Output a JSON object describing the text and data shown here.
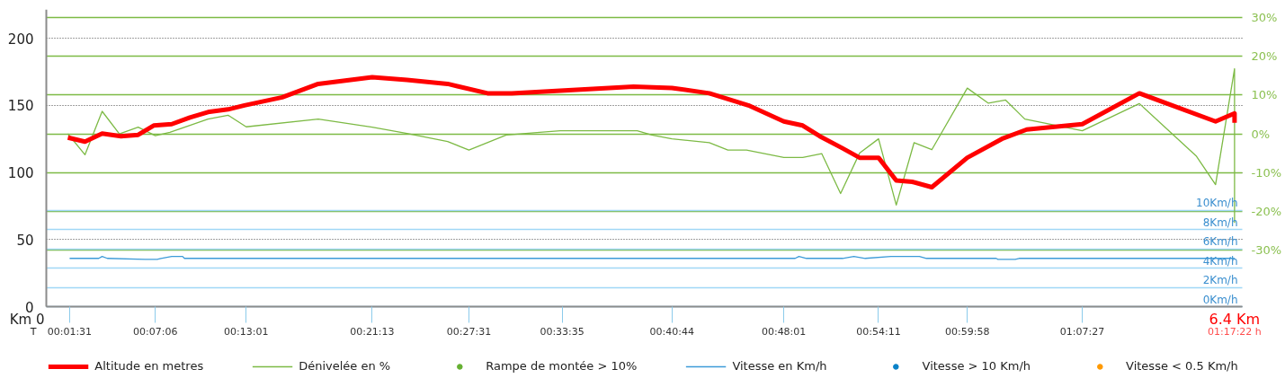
{
  "chart_data": {
    "type": "line",
    "xlim": [
      0,
      1.2978
    ],
    "xticks": [
      {
        "value": 0.02528,
        "label": "00:01:31"
      },
      {
        "value": 0.11833,
        "label": "00:07:06"
      },
      {
        "value": 0.21694,
        "label": "00:13:01"
      },
      {
        "value": 0.35361,
        "label": "00:21:13"
      },
      {
        "value": 0.45861,
        "label": "00:27:31"
      },
      {
        "value": 0.55972,
        "label": "00:33:35"
      },
      {
        "value": 0.67889,
        "label": "00:40:44"
      },
      {
        "value": 0.80028,
        "label": "00:48:01"
      },
      {
        "value": 0.90306,
        "label": "00:54:11"
      },
      {
        "value": 0.99944,
        "label": "00:59:58"
      },
      {
        "value": 1.12417,
        "label": "01:07:27"
      }
    ],
    "ylim": [
      0,
      221.5
    ],
    "yticks": [
      0,
      50,
      100,
      150,
      200
    ],
    "y2lim": [
      -44.6,
      32.1
    ],
    "y2ticks": [
      {
        "value": 30,
        "label": "30%"
      },
      {
        "value": 20,
        "label": "20%"
      },
      {
        "value": 10,
        "label": "10%"
      },
      {
        "value": 0,
        "label": "0%"
      },
      {
        "value": -10,
        "label": "-10%"
      },
      {
        "value": -20,
        "label": "-20%"
      },
      {
        "value": -30,
        "label": "-30%"
      }
    ],
    "y3lim": [
      0,
      30.8
    ],
    "y3ticks": [
      {
        "value": 0,
        "label": "0Km/h"
      },
      {
        "value": 2,
        "label": "2Km/h"
      },
      {
        "value": 4,
        "label": "4Km/h"
      },
      {
        "value": 6,
        "label": "6Km/h"
      },
      {
        "value": 8,
        "label": "8Km/h"
      },
      {
        "value": 10,
        "label": "10Km/h"
      }
    ],
    "grid": "y",
    "legend": "bottom",
    "annotations": [
      "Km 0",
      "T",
      "6.4 Km",
      "01:17:22 h"
    ],
    "series": [
      {
        "name": "Altitude en metres",
        "color": "#ff0000",
        "x": [
          0.0234,
          0.042,
          0.0606,
          0.0811,
          0.0997,
          0.1165,
          0.1361,
          0.1558,
          0.1755,
          0.1972,
          0.215,
          0.256,
          0.2951,
          0.3536,
          0.3914,
          0.4355,
          0.4788,
          0.5051,
          0.5577,
          0.6372,
          0.6789,
          0.7194,
          0.7618,
          0.8003,
          0.8208,
          0.8393,
          0.864,
          0.8825,
          0.9031,
          0.9223,
          0.9397,
          0.9609,
          0.9994,
          1.0369,
          1.0639,
          1.1242,
          1.1861,
          1.2688,
          1.2894,
          1.2894
        ],
        "values": [
          126,
          123,
          129,
          127,
          128,
          135,
          136,
          141,
          145,
          147,
          150,
          156,
          166,
          171,
          169,
          166,
          159,
          159,
          161,
          164,
          163,
          159,
          150,
          138,
          135,
          127,
          118,
          111,
          111,
          94,
          93,
          89,
          111,
          125,
          132,
          136,
          159,
          138,
          144,
          137
        ]
      },
      {
        "name": "Dénivelée en %",
        "color": "#7dba45",
        "axis": "y2",
        "x": [
          0.0234,
          0.042,
          0.0606,
          0.0793,
          0.0997,
          0.1183,
          0.1341,
          0.1755,
          0.1972,
          0.2169,
          0.2951,
          0.3536,
          0.3914,
          0.4355,
          0.4586,
          0.4991,
          0.5354,
          0.5577,
          0.6412,
          0.6571,
          0.6789,
          0.7194,
          0.7396,
          0.7598,
          0.8003,
          0.8208,
          0.8414,
          0.8619,
          0.8825,
          0.9031,
          0.9223,
          0.9416,
          0.9609,
          0.9994,
          1.0223,
          1.041,
          1.0618,
          1.0847,
          1.1242,
          1.1861,
          1.2481,
          1.2688,
          1.2894,
          1.2894
        ],
        "values": [
          0,
          -5.4,
          5.8,
          0,
          1.7,
          -0.5,
          0.4,
          3.8,
          4.8,
          1.8,
          3.8,
          1.7,
          0.1,
          -2.0,
          -4.2,
          -0.3,
          0.4,
          0.8,
          0.8,
          -0.3,
          -1.3,
          -2.3,
          -4.2,
          -4.2,
          -6.1,
          -6.1,
          -5.1,
          -15.4,
          -5.0,
          -1.3,
          -18.4,
          -2.3,
          -4.1,
          11.8,
          7.9,
          8.7,
          3.8,
          2.7,
          0.8,
          7.8,
          -5.8,
          -13.1,
          16.8,
          -23
        ]
      },
      {
        "name": "Rampe de montée > 10%",
        "type": "scatter",
        "color": "#66b032",
        "axis": "y2"
      },
      {
        "name": "Vitesse en Km/h",
        "color": "#3d9bd8",
        "axis": "y3",
        "x": [
          0.0253,
          0.0569,
          0.0606,
          0.0662,
          0.1072,
          0.1203,
          0.1243,
          0.1361,
          0.1479,
          0.1499,
          0.8126,
          0.8167,
          0.8249,
          0.864,
          0.8763,
          0.8887,
          0.9166,
          0.9474,
          0.9551,
          1.0306,
          1.0327,
          1.0514,
          1.0556,
          1.2894
        ],
        "values": [
          5,
          5,
          5.2,
          5,
          4.9,
          4.9,
          5,
          5.2,
          5.2,
          5,
          5,
          5.2,
          5,
          5,
          5.2,
          5,
          5.2,
          5.2,
          5,
          5,
          4.9,
          4.9,
          5,
          5
        ]
      },
      {
        "name": "Vitesse > 10 Km/h",
        "type": "scatter",
        "color": "#0a82c8",
        "axis": "y3"
      },
      {
        "name": "Vitesse < 0.5 Km/h",
        "type": "scatter",
        "color": "#ff9900",
        "axis": "y3"
      }
    ]
  }
}
